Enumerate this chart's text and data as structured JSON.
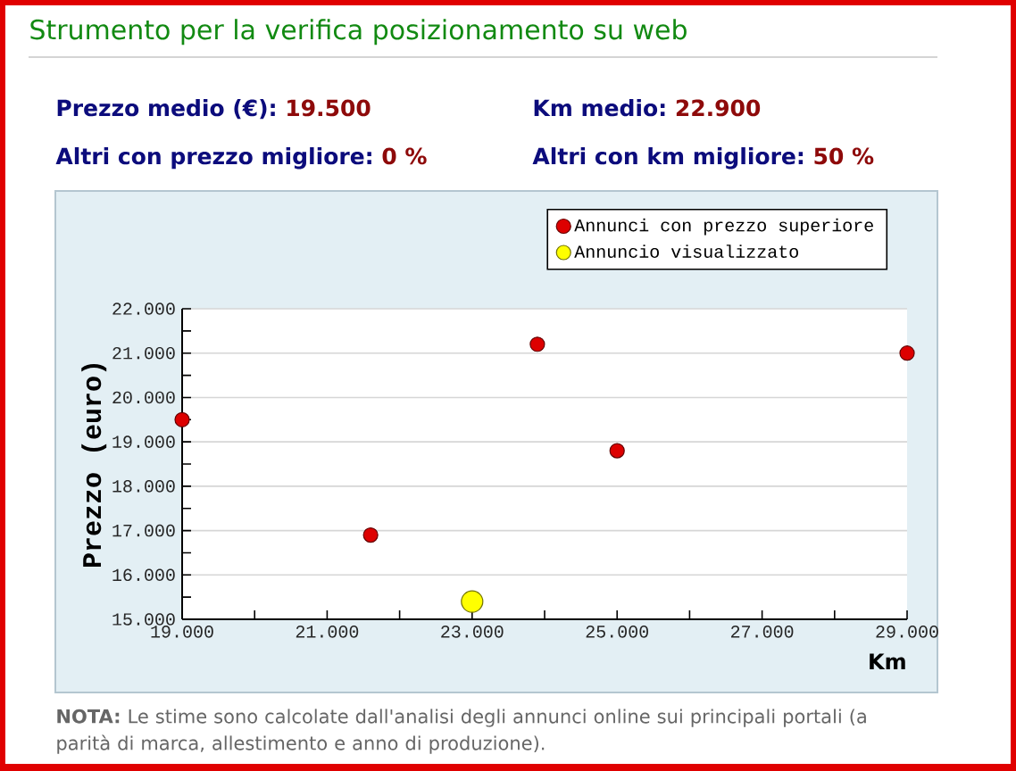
{
  "chart_data": {
    "type": "scatter",
    "title": "Strumento per la verifica posizionamento su web",
    "xlabel": "Km",
    "ylabel": "Prezzo (euro)",
    "series": [
      {
        "name": "Annunci con prezzo superiore",
        "color": "#dd0000",
        "x": [
          19000,
          21600,
          23900,
          25000,
          29000
        ],
        "values": [
          19500,
          16900,
          21200,
          18800,
          21000
        ]
      },
      {
        "name": "Annuncio visualizzato",
        "color": "#ffff00",
        "x": [
          23000
        ],
        "values": [
          15400
        ]
      }
    ],
    "xlim": [
      19000,
      29000
    ],
    "xticks": [
      {
        "value": 19000,
        "label": "19.000"
      },
      {
        "value": 20000,
        "label": null
      },
      {
        "value": 21000,
        "label": "21.000"
      },
      {
        "value": 22000,
        "label": null
      },
      {
        "value": 23000,
        "label": "23.000"
      },
      {
        "value": 24000,
        "label": null
      },
      {
        "value": 25000,
        "label": "25.000"
      },
      {
        "value": 26000,
        "label": null
      },
      {
        "value": 27000,
        "label": "27.000"
      },
      {
        "value": 28000,
        "label": null
      },
      {
        "value": 29000,
        "label": "29.000"
      }
    ],
    "ylim": [
      15000,
      22000
    ],
    "yticks": [
      {
        "value": 15000,
        "label": "15.000"
      },
      {
        "value": 15500,
        "label": null
      },
      {
        "value": 16000,
        "label": "16.000"
      },
      {
        "value": 16500,
        "label": null
      },
      {
        "value": 17000,
        "label": "17.000"
      },
      {
        "value": 17500,
        "label": null
      },
      {
        "value": 18000,
        "label": "18.000"
      },
      {
        "value": 18500,
        "label": null
      },
      {
        "value": 19000,
        "label": "19.000"
      },
      {
        "value": 19500,
        "label": null
      },
      {
        "value": 20000,
        "label": "20.000"
      },
      {
        "value": 20500,
        "label": null
      },
      {
        "value": 21000,
        "label": "21.000"
      },
      {
        "value": 21500,
        "label": null
      },
      {
        "value": 22000,
        "label": "22.000"
      }
    ],
    "grid": "y",
    "legend": "top right",
    "marker": "circle",
    "annotations": [
      "Prezzo medio (€):",
      "19.500",
      "Km medio:",
      "22.900",
      "Altri con prezzo migliore:",
      "0 %",
      "Altri con km migliore:",
      "50 %",
      "**NOTA:** Le stime sono calcolate dall'analisi degli annunci online sui principali portali (a parità di marca, allestimento e anno di produzione)."
    ]
  }
}
